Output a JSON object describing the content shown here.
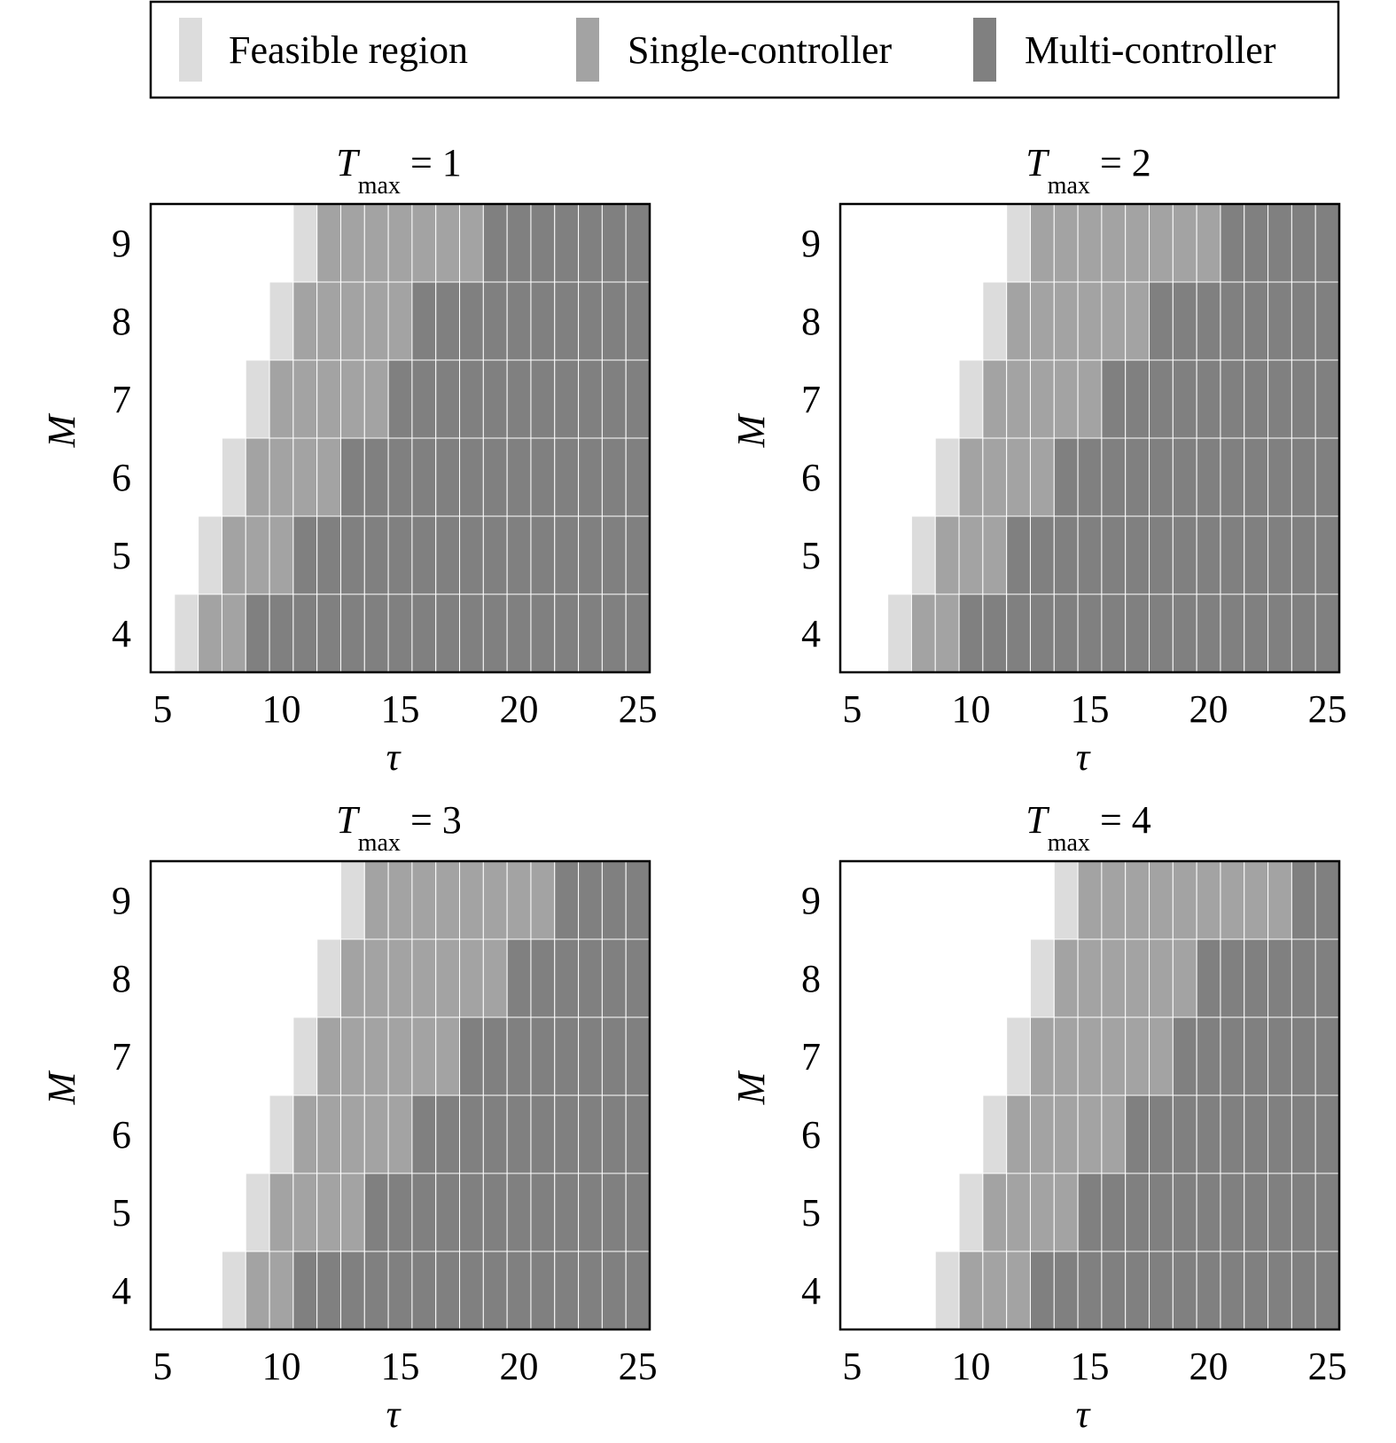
{
  "legend": {
    "items": [
      {
        "label": "Feasible region",
        "color": "#dcdcdc"
      },
      {
        "label": "Single-controller",
        "color": "#a3a3a3"
      },
      {
        "label": "Multi-controller",
        "color": "#808080"
      }
    ]
  },
  "chart_data": [
    {
      "type": "heatmap",
      "title_main": "T",
      "title_sub": "max",
      "title_value": " = 1",
      "xlabel": "τ",
      "ylabel": "M",
      "xlim": [
        5,
        25
      ],
      "ylim": [
        4,
        9
      ],
      "xticks": [
        "5",
        "10",
        "15",
        "20",
        "25"
      ],
      "yticks": [
        "9",
        "8",
        "7",
        "6",
        "5",
        "4"
      ],
      "categories": [
        "empty",
        "feasible",
        "single",
        "multi"
      ],
      "rows": [
        {
          "M": 4,
          "feasible_from": 6,
          "single_from": 7,
          "multi_from": 9
        },
        {
          "M": 5,
          "feasible_from": 7,
          "single_from": 8,
          "multi_from": 11
        },
        {
          "M": 6,
          "feasible_from": 8,
          "single_from": 9,
          "multi_from": 13
        },
        {
          "M": 7,
          "feasible_from": 9,
          "single_from": 10,
          "multi_from": 15
        },
        {
          "M": 8,
          "feasible_from": 10,
          "single_from": 11,
          "multi_from": 16
        },
        {
          "M": 9,
          "feasible_from": 11,
          "single_from": 12,
          "multi_from": 19
        }
      ]
    },
    {
      "type": "heatmap",
      "title_main": "T",
      "title_sub": "max",
      "title_value": " = 2",
      "xlabel": "τ",
      "ylabel": "M",
      "xlim": [
        5,
        25
      ],
      "ylim": [
        4,
        9
      ],
      "xticks": [
        "5",
        "10",
        "15",
        "20",
        "25"
      ],
      "yticks": [
        "9",
        "8",
        "7",
        "6",
        "5",
        "4"
      ],
      "categories": [
        "empty",
        "feasible",
        "single",
        "multi"
      ],
      "rows": [
        {
          "M": 4,
          "feasible_from": 7,
          "single_from": 8,
          "multi_from": 10
        },
        {
          "M": 5,
          "feasible_from": 8,
          "single_from": 9,
          "multi_from": 12
        },
        {
          "M": 6,
          "feasible_from": 9,
          "single_from": 10,
          "multi_from": 14
        },
        {
          "M": 7,
          "feasible_from": 10,
          "single_from": 11,
          "multi_from": 16
        },
        {
          "M": 8,
          "feasible_from": 11,
          "single_from": 12,
          "multi_from": 18
        },
        {
          "M": 9,
          "feasible_from": 12,
          "single_from": 13,
          "multi_from": 21
        }
      ]
    },
    {
      "type": "heatmap",
      "title_main": "T",
      "title_sub": "max",
      "title_value": " = 3",
      "xlabel": "τ",
      "ylabel": "M",
      "xlim": [
        5,
        25
      ],
      "ylim": [
        4,
        9
      ],
      "xticks": [
        "5",
        "10",
        "15",
        "20",
        "25"
      ],
      "yticks": [
        "9",
        "8",
        "7",
        "6",
        "5",
        "4"
      ],
      "categories": [
        "empty",
        "feasible",
        "single",
        "multi"
      ],
      "rows": [
        {
          "M": 4,
          "feasible_from": 8,
          "single_from": 9,
          "multi_from": 11
        },
        {
          "M": 5,
          "feasible_from": 9,
          "single_from": 10,
          "multi_from": 14
        },
        {
          "M": 6,
          "feasible_from": 10,
          "single_from": 11,
          "multi_from": 16
        },
        {
          "M": 7,
          "feasible_from": 11,
          "single_from": 12,
          "multi_from": 18
        },
        {
          "M": 8,
          "feasible_from": 12,
          "single_from": 13,
          "multi_from": 20
        },
        {
          "M": 9,
          "feasible_from": 13,
          "single_from": 14,
          "multi_from": 22
        }
      ]
    },
    {
      "type": "heatmap",
      "title_main": "T",
      "title_sub": "max",
      "title_value": " = 4",
      "xlabel": "τ",
      "ylabel": "M",
      "xlim": [
        5,
        25
      ],
      "ylim": [
        4,
        9
      ],
      "xticks": [
        "5",
        "10",
        "15",
        "20",
        "25"
      ],
      "yticks": [
        "9",
        "8",
        "7",
        "6",
        "5",
        "4"
      ],
      "categories": [
        "empty",
        "feasible",
        "single",
        "multi"
      ],
      "rows": [
        {
          "M": 4,
          "feasible_from": 9,
          "single_from": 10,
          "multi_from": 13
        },
        {
          "M": 5,
          "feasible_from": 10,
          "single_from": 11,
          "multi_from": 15
        },
        {
          "M": 6,
          "feasible_from": 11,
          "single_from": 12,
          "multi_from": 17
        },
        {
          "M": 7,
          "feasible_from": 12,
          "single_from": 13,
          "multi_from": 19
        },
        {
          "M": 8,
          "feasible_from": 13,
          "single_from": 14,
          "multi_from": 20
        },
        {
          "M": 9,
          "feasible_from": 14,
          "single_from": 15,
          "multi_from": 24
        }
      ]
    }
  ]
}
